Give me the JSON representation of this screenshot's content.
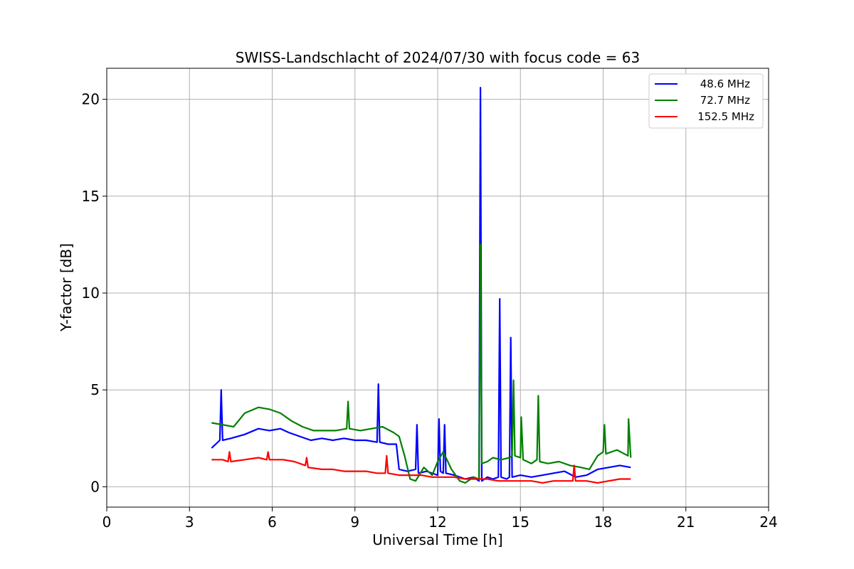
{
  "chart_data": {
    "type": "line",
    "title": "SWISS-Landschlacht of 2024/07/30 with focus code = 63",
    "xlabel": "Universal Time [h]",
    "ylabel": "Y-factor [dB]",
    "xlim": [
      0,
      24
    ],
    "ylim": [
      -1.05,
      21.6
    ],
    "xticks": [
      0,
      3,
      6,
      9,
      12,
      15,
      18,
      21,
      24
    ],
    "xtick_labels": [
      "0",
      "3",
      "6",
      "9",
      "12",
      "15",
      "18",
      "21",
      "24"
    ],
    "yticks": [
      0,
      5,
      10,
      15,
      20
    ],
    "ytick_labels": [
      "0",
      "5",
      "10",
      "15",
      "20"
    ],
    "grid": true,
    "legend_position": "top-right",
    "series": [
      {
        "name": " 48.6 MHz",
        "color": "#0000ff",
        "x": [
          3.8,
          4.1,
          4.15,
          4.2,
          4.5,
          5.0,
          5.5,
          5.9,
          6.3,
          6.6,
          7.0,
          7.4,
          7.8,
          8.2,
          8.6,
          9.0,
          9.4,
          9.8,
          9.85,
          9.9,
          10.2,
          10.5,
          10.6,
          10.9,
          11.2,
          11.25,
          11.3,
          11.6,
          12.0,
          12.05,
          12.1,
          12.2,
          12.25,
          12.3,
          12.6,
          13.0,
          13.3,
          13.5,
          13.55,
          13.6,
          13.8,
          14.0,
          14.2,
          14.25,
          14.3,
          14.5,
          14.6,
          14.65,
          14.7,
          15.0,
          15.4,
          15.8,
          16.2,
          16.6,
          17.0,
          17.4,
          17.8,
          18.2,
          18.6,
          19.0
        ],
        "y": [
          2.0,
          2.4,
          5.0,
          2.4,
          2.5,
          2.7,
          3.0,
          2.9,
          3.0,
          2.8,
          2.6,
          2.4,
          2.5,
          2.4,
          2.5,
          2.4,
          2.4,
          2.3,
          5.3,
          2.3,
          2.2,
          2.2,
          0.9,
          0.8,
          0.9,
          3.2,
          0.7,
          0.8,
          0.6,
          3.5,
          0.8,
          0.7,
          3.2,
          0.7,
          0.6,
          0.4,
          0.5,
          0.3,
          20.6,
          0.3,
          0.5,
          0.4,
          0.5,
          9.7,
          0.5,
          0.4,
          0.5,
          7.7,
          0.5,
          0.6,
          0.5,
          0.6,
          0.7,
          0.8,
          0.5,
          0.6,
          0.9,
          1.0,
          1.1,
          1.0
        ]
      },
      {
        "name": " 72.7 MHz",
        "color": "#008000",
        "x": [
          3.8,
          4.2,
          4.6,
          5.0,
          5.5,
          5.9,
          6.3,
          6.7,
          7.1,
          7.5,
          7.9,
          8.3,
          8.7,
          8.75,
          8.8,
          9.2,
          9.6,
          10.0,
          10.4,
          10.6,
          10.8,
          11.0,
          11.2,
          11.5,
          11.8,
          12.0,
          12.2,
          12.5,
          12.8,
          13.0,
          13.3,
          13.5,
          13.55,
          13.6,
          13.8,
          14.0,
          14.3,
          14.6,
          14.7,
          14.75,
          14.8,
          15.0,
          15.03,
          15.1,
          15.4,
          15.6,
          15.65,
          15.7,
          16.0,
          16.4,
          16.8,
          17.2,
          17.5,
          17.8,
          18.0,
          18.05,
          18.1,
          18.5,
          18.9,
          18.92,
          19.0
        ],
        "y": [
          3.3,
          3.2,
          3.1,
          3.8,
          4.1,
          4.0,
          3.8,
          3.4,
          3.1,
          2.9,
          2.9,
          2.9,
          3.0,
          4.4,
          3.0,
          2.9,
          3.0,
          3.1,
          2.8,
          2.6,
          1.6,
          0.4,
          0.3,
          1.0,
          0.6,
          1.3,
          1.8,
          0.9,
          0.3,
          0.2,
          0.5,
          0.4,
          12.5,
          1.2,
          1.3,
          1.5,
          1.4,
          1.5,
          1.6,
          5.5,
          1.6,
          1.5,
          3.6,
          1.4,
          1.2,
          1.4,
          4.7,
          1.3,
          1.2,
          1.3,
          1.1,
          1.0,
          0.9,
          1.6,
          1.8,
          3.2,
          1.7,
          1.9,
          1.6,
          3.5,
          1.5
        ]
      },
      {
        "name": "152.5 MHz",
        "color": "#ff0000",
        "x": [
          3.8,
          4.2,
          4.4,
          4.45,
          4.5,
          5.0,
          5.5,
          5.8,
          5.85,
          5.9,
          6.4,
          6.8,
          7.2,
          7.25,
          7.3,
          7.8,
          8.2,
          8.6,
          9.0,
          9.4,
          9.8,
          10.1,
          10.15,
          10.2,
          10.6,
          11.0,
          11.4,
          11.8,
          12.2,
          12.6,
          13.0,
          13.4,
          13.8,
          14.2,
          14.6,
          15.0,
          15.4,
          15.8,
          16.2,
          16.6,
          16.9,
          16.95,
          17.0,
          17.4,
          17.8,
          18.2,
          18.6,
          19.0
        ],
        "y": [
          1.4,
          1.4,
          1.3,
          1.8,
          1.3,
          1.4,
          1.5,
          1.4,
          1.8,
          1.4,
          1.4,
          1.3,
          1.1,
          1.5,
          1.0,
          0.9,
          0.9,
          0.8,
          0.8,
          0.8,
          0.7,
          0.7,
          1.6,
          0.7,
          0.6,
          0.6,
          0.6,
          0.5,
          0.5,
          0.5,
          0.4,
          0.4,
          0.4,
          0.3,
          0.3,
          0.3,
          0.3,
          0.2,
          0.3,
          0.3,
          0.3,
          1.1,
          0.3,
          0.3,
          0.2,
          0.3,
          0.4,
          0.4
        ]
      }
    ]
  }
}
